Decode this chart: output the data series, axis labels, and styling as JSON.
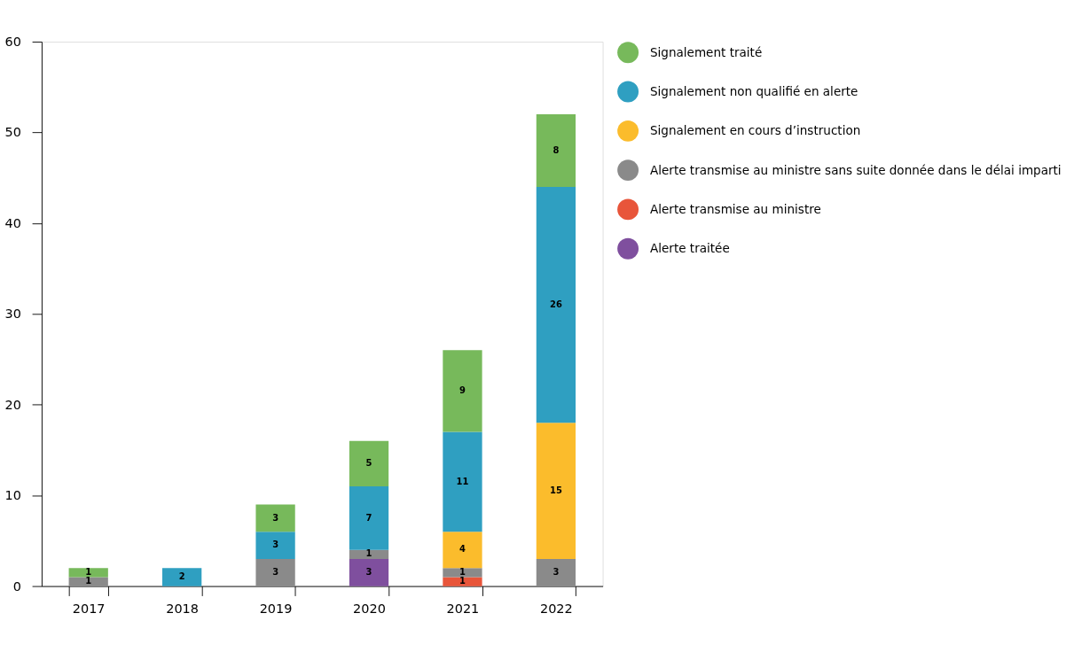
{
  "chart_data": {
    "type": "bar",
    "stacked": true,
    "data_labels": true,
    "legend": "right",
    "grid": false,
    "categories": [
      "2017",
      "2018",
      "2019",
      "2020",
      "2021",
      "2022"
    ],
    "ylim": [
      0,
      60
    ],
    "yticks": [
      0,
      10,
      20,
      30,
      40,
      50,
      60
    ],
    "series": [
      {
        "name": "Alerte traitée",
        "color": "#7f4f9e",
        "values": [
          null,
          null,
          null,
          3,
          null,
          null
        ]
      },
      {
        "name": "Alerte transmise au ministre",
        "color": "#e8553a",
        "values": [
          null,
          null,
          null,
          null,
          1,
          null
        ]
      },
      {
        "name": "Alerte transmise au ministre sans suite donnée dans le délai imparti",
        "color": "#8a8a8a",
        "values": [
          1,
          null,
          3,
          1,
          1,
          3
        ]
      },
      {
        "name": "Signalement en cours d’instruction",
        "color": "#fbbc2c",
        "values": [
          null,
          null,
          null,
          null,
          4,
          15
        ]
      },
      {
        "name": "Signalement non qualifié en alerte",
        "color": "#2f9fc1",
        "values": [
          null,
          2,
          3,
          7,
          11,
          26
        ]
      },
      {
        "name": "Signalement traité",
        "color": "#77b95b",
        "values": [
          1,
          null,
          3,
          5,
          9,
          8
        ]
      }
    ]
  }
}
